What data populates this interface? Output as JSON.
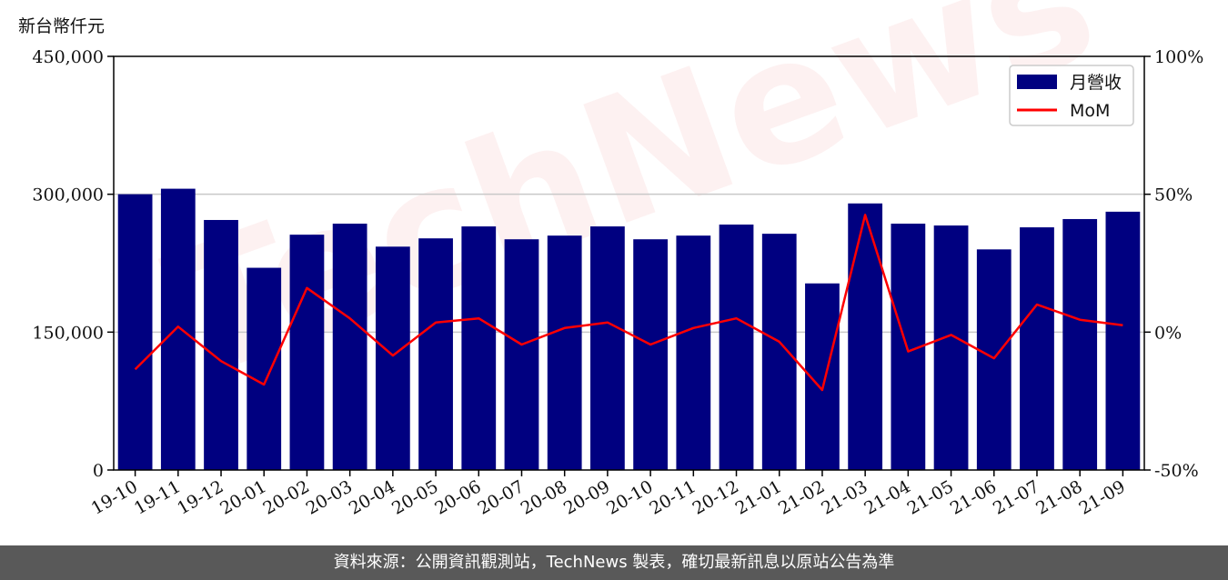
{
  "y_left_unit": "新台幣仟元",
  "footer": "資料來源：公開資訊觀測站，TechNews 製表，確切最新訊息以原站公告為準",
  "watermark": "TechNews",
  "chart_data": {
    "type": "bar",
    "categories": [
      "19-10",
      "19-11",
      "19-12",
      "20-01",
      "20-02",
      "20-03",
      "20-04",
      "20-05",
      "20-06",
      "20-07",
      "20-08",
      "20-09",
      "20-10",
      "20-11",
      "20-12",
      "21-01",
      "21-02",
      "21-03",
      "21-04",
      "21-05",
      "21-06",
      "21-07",
      "21-08",
      "21-09"
    ],
    "series": [
      {
        "name": "月營收",
        "type": "bar",
        "axis": "left",
        "color": "#000080",
        "values": [
          300000,
          306000,
          272000,
          220000,
          256000,
          268000,
          243000,
          252000,
          265000,
          251000,
          255000,
          265000,
          251000,
          255000,
          267000,
          257000,
          203000,
          290000,
          268000,
          266000,
          240000,
          264000,
          273000,
          281000
        ]
      },
      {
        "name": "MoM",
        "type": "line",
        "axis": "right",
        "color": "#ff0000",
        "values": [
          -13.5,
          2,
          -10.5,
          -19,
          16,
          5,
          -8.5,
          3.5,
          5,
          -4.5,
          1.5,
          3.5,
          -4.5,
          1.5,
          5,
          -3.5,
          -21,
          42.5,
          -7,
          -1,
          -9.5,
          10,
          4.5,
          2.5
        ]
      }
    ],
    "y_left": {
      "min": 0,
      "max": 450000,
      "ticks": [
        0,
        150000,
        300000,
        450000
      ],
      "tick_labels": [
        "0",
        "150,000",
        "300,000",
        "450,000"
      ]
    },
    "y_right": {
      "min": -50,
      "max": 100,
      "ticks": [
        -50,
        0,
        50,
        100
      ],
      "tick_labels": [
        "-50%",
        "0%",
        "50%",
        "100%"
      ]
    },
    "grid": "horizontal",
    "legend_position": "top-right"
  }
}
